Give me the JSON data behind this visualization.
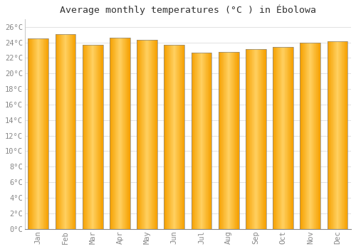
{
  "title": "Average monthly temperatures (°C ) in Ébolowa",
  "months": [
    "Jan",
    "Feb",
    "Mar",
    "Apr",
    "May",
    "Jun",
    "Jul",
    "Aug",
    "Sep",
    "Oct",
    "Nov",
    "Dec"
  ],
  "values": [
    24.5,
    25.1,
    23.7,
    24.6,
    24.3,
    23.7,
    22.7,
    22.8,
    23.1,
    23.4,
    24.0,
    24.1
  ],
  "bar_color_center": "#FFD060",
  "bar_color_edge": "#F5A000",
  "bar_border_color": "#888888",
  "background_color": "#FFFFFF",
  "grid_color": "#DDDDDD",
  "ylim": [
    0,
    27
  ],
  "yticks": [
    0,
    2,
    4,
    6,
    8,
    10,
    12,
    14,
    16,
    18,
    20,
    22,
    24,
    26
  ],
  "title_fontsize": 9.5,
  "tick_fontsize": 7.5,
  "bar_width": 0.75,
  "fig_width": 5.0,
  "fig_height": 3.5,
  "dpi": 100
}
